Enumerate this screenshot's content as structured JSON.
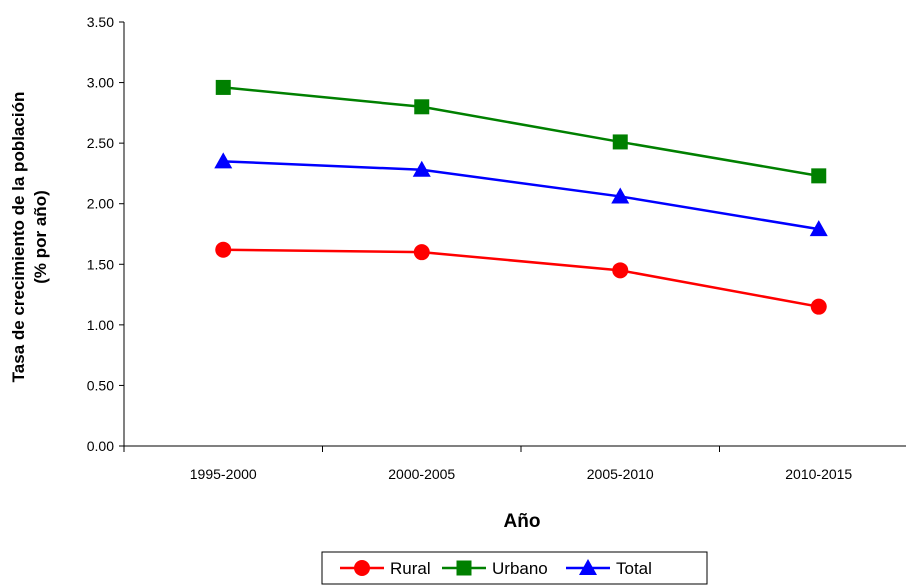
{
  "chart_data": {
    "type": "line",
    "categories": [
      "1995-2000",
      "2000-2005",
      "2005-2010",
      "2010-2015"
    ],
    "series": [
      {
        "name": "Rural",
        "values": [
          1.62,
          1.6,
          1.45,
          1.15
        ],
        "color": "#ff0000",
        "marker": "circle"
      },
      {
        "name": "Urbano",
        "values": [
          2.96,
          2.8,
          2.51,
          2.23
        ],
        "color": "#008000",
        "marker": "square"
      },
      {
        "name": "Total",
        "values": [
          2.35,
          2.28,
          2.06,
          1.79
        ],
        "color": "#0000ff",
        "marker": "triangle"
      }
    ],
    "xlabel": "Año",
    "ylabel_line1": "Tasa de crecimiento de la población",
    "ylabel_line2": "(% por año)",
    "ylim": [
      0,
      3.5
    ],
    "yticks": [
      "0.00",
      "0.50",
      "1.00",
      "1.50",
      "2.00",
      "2.50",
      "3.00",
      "3.50"
    ],
    "grid": false,
    "legend": "bottom-center"
  }
}
